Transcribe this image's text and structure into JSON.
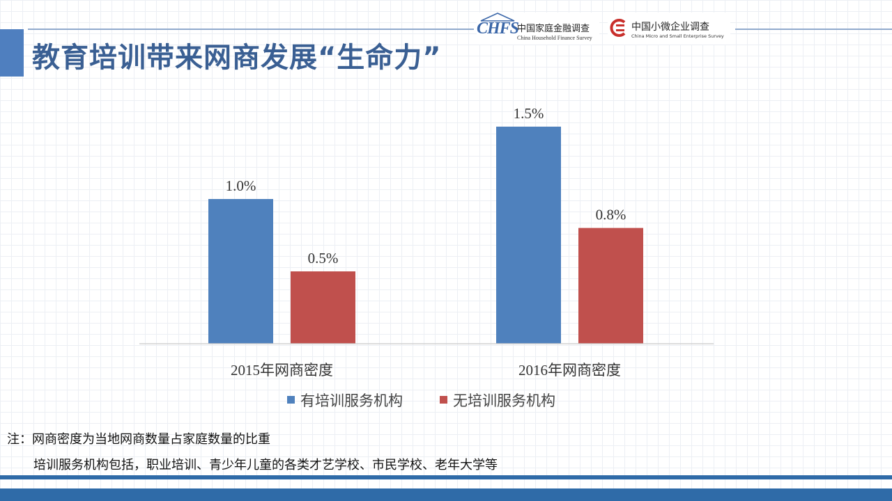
{
  "header": {
    "title": "教育培训带来网商发展“生命力”",
    "logos": {
      "chfs": {
        "mark": "CHFS",
        "name_cn": "中国家庭金融调查",
        "name_en": "China Household Finance Survey"
      },
      "cmse": {
        "name_cn": "中国小微企业调查",
        "name_en": "China Micro and Small Enterprise Survey"
      }
    }
  },
  "chart_data": {
    "type": "bar",
    "categories": [
      "2015年网商密度",
      "2016年网商密度"
    ],
    "series": [
      {
        "name": "有培训服务机构",
        "values": [
          1.0,
          1.5
        ],
        "labels": [
          "1.0%",
          "1.5%"
        ],
        "color": "#4f81bd"
      },
      {
        "name": "无培训服务机构",
        "values": [
          0.5,
          0.8
        ],
        "labels": [
          "0.5%",
          "0.8%"
        ],
        "color": "#c0504d"
      }
    ],
    "unit": "%",
    "ylim": [
      0,
      2.0
    ],
    "grid": false,
    "legend_position": "bottom"
  },
  "notes": {
    "line1": "注：网商密度为当地网商数量占家庭数量的比重",
    "line2": "培训服务机构包括，职业培训、青少年儿童的各类才艺学校、市民学校、老年大学等"
  },
  "colors": {
    "title": "#3a5f93",
    "accent": "#4f7fbf",
    "footer": "#2f6ba8"
  }
}
